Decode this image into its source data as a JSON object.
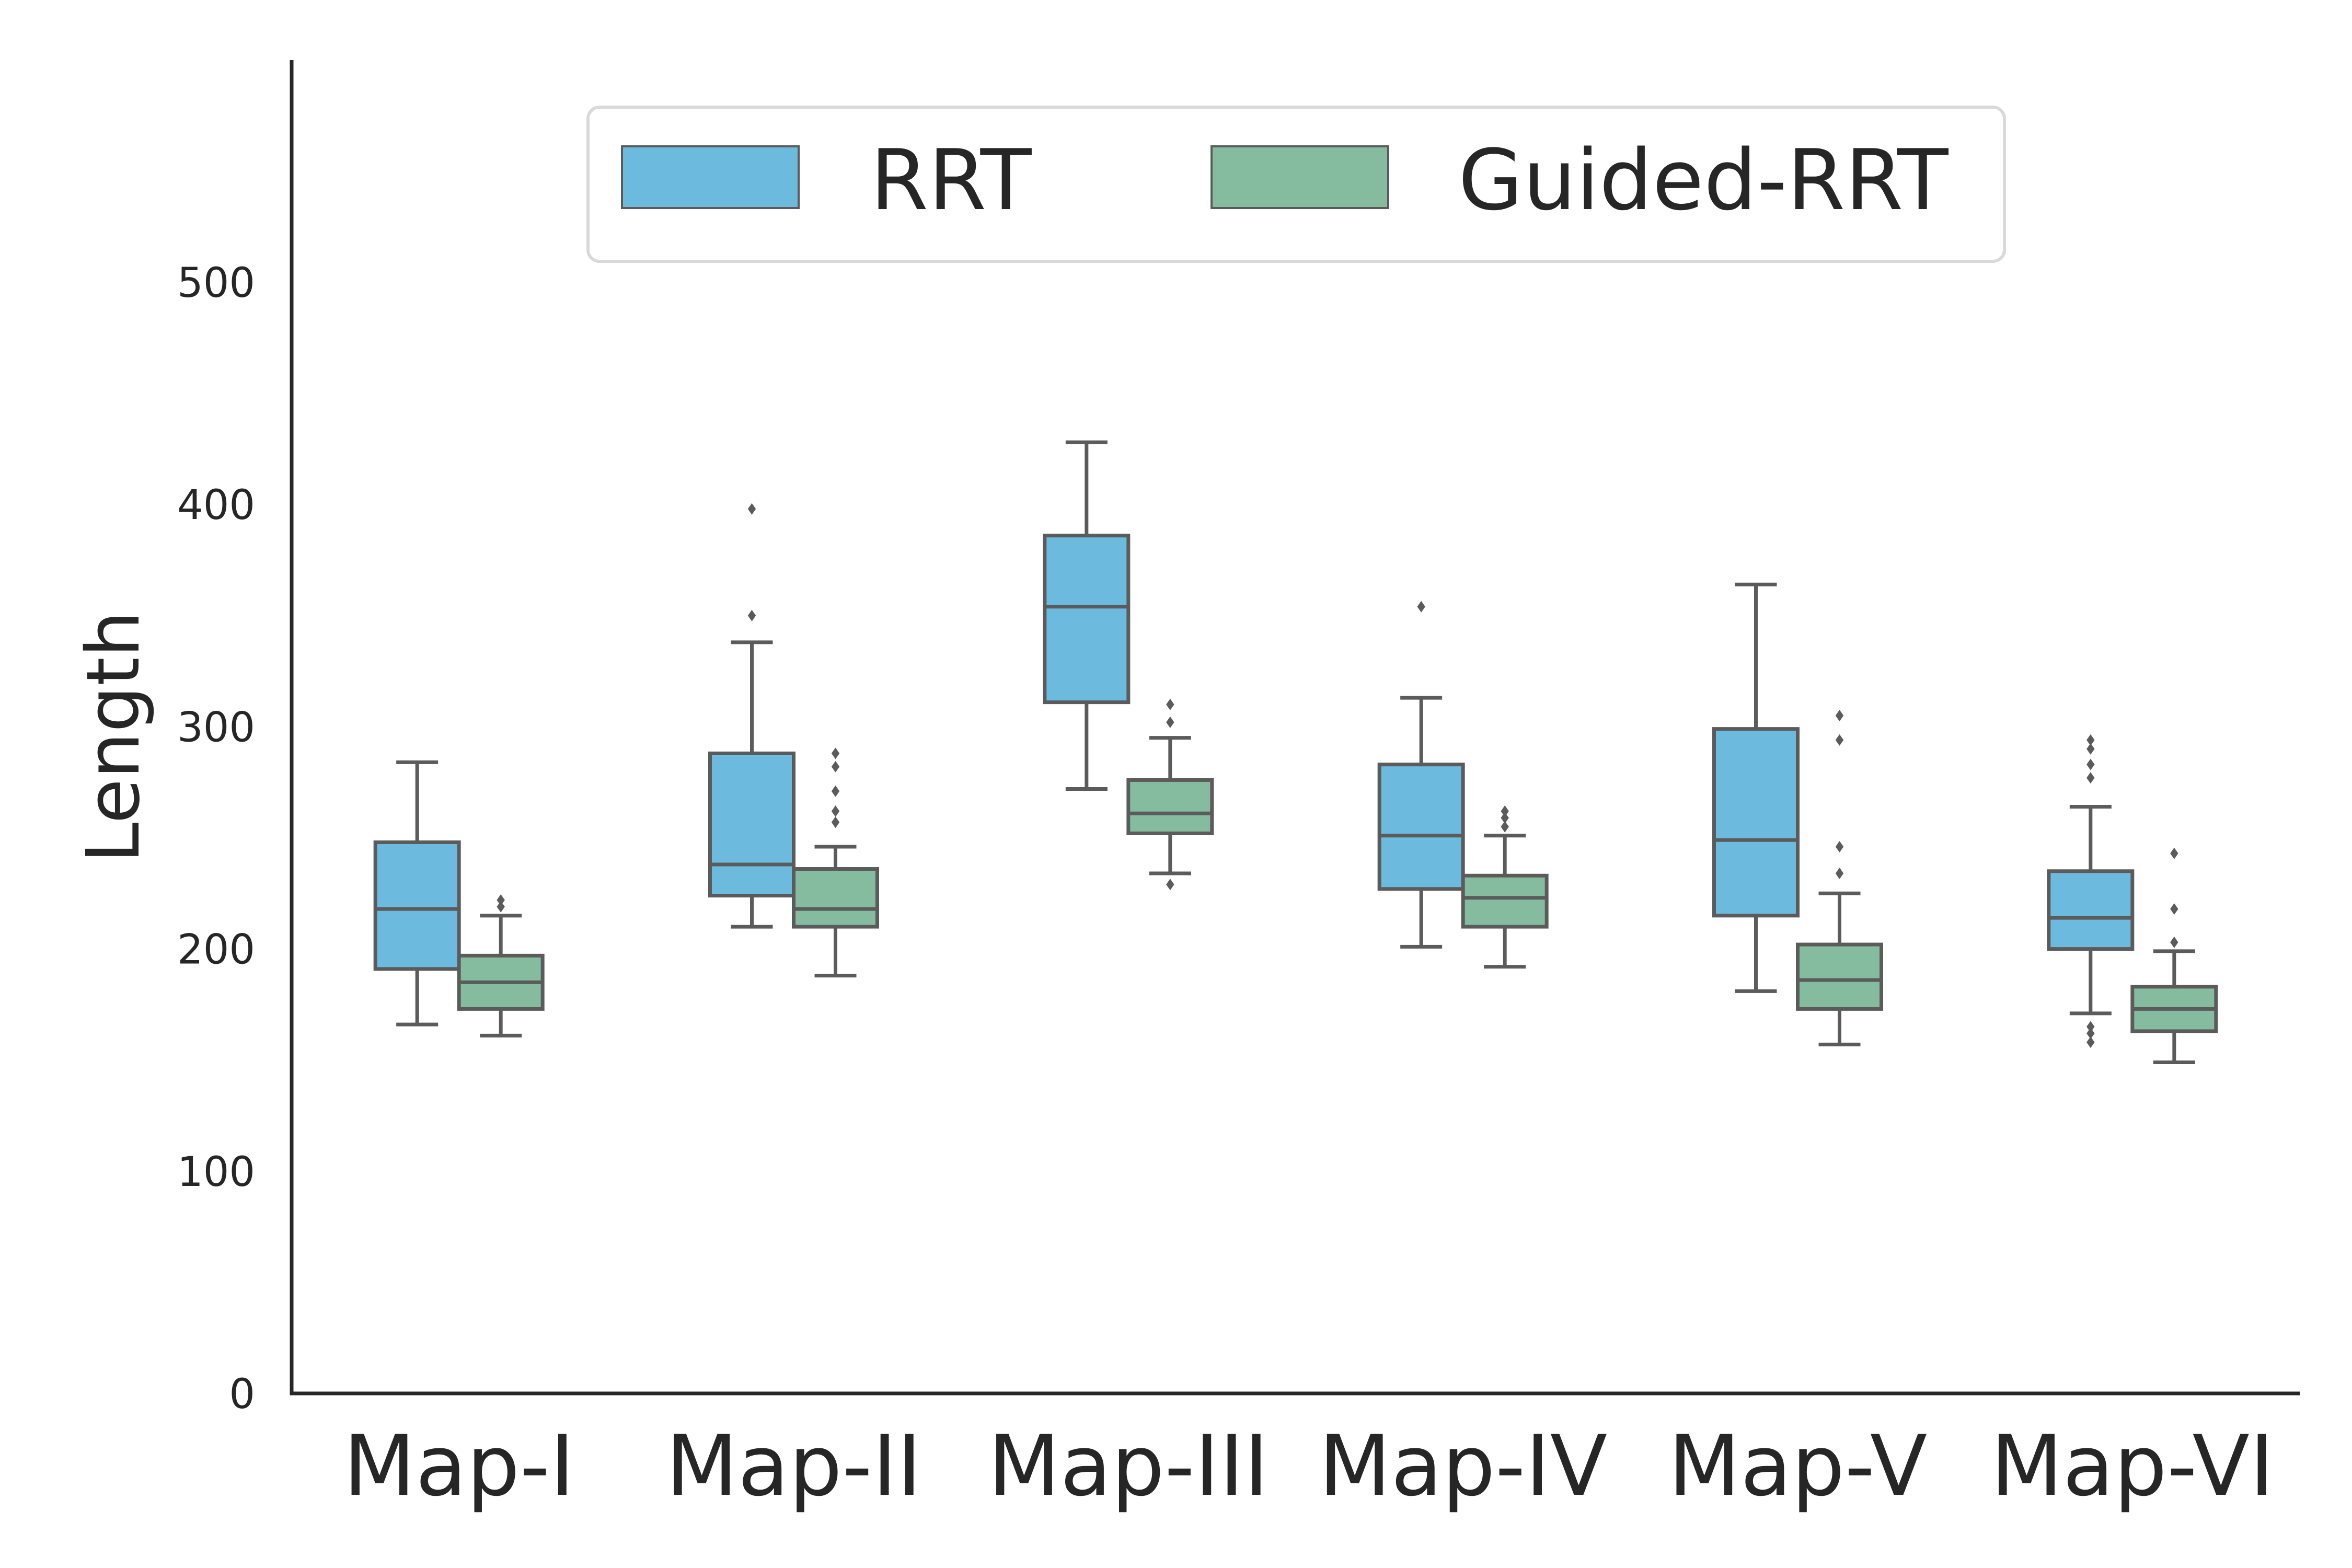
{
  "chart_data": {
    "type": "box",
    "title": "",
    "xlabel": "",
    "ylabel": "Length",
    "ylim": [
      0,
      600
    ],
    "yticks": [
      0,
      100,
      200,
      300,
      400,
      500
    ],
    "grid": false,
    "legend_position": "top-center",
    "categories": [
      "Map-I",
      "Map-II",
      "Map-III",
      "Map-IV",
      "Map-V",
      "Map-VI"
    ],
    "series": [
      {
        "name": "RRT",
        "color": "#6cbbdf",
        "boxes": [
          {
            "whislo": 166,
            "q1": 191,
            "med": 218,
            "q3": 248,
            "whishi": 284,
            "fliers": []
          },
          {
            "whislo": 210,
            "q1": 224,
            "med": 238,
            "q3": 288,
            "whishi": 338,
            "fliers": [
              350,
              398
            ]
          },
          {
            "whislo": 272,
            "q1": 311,
            "med": 354,
            "q3": 386,
            "whishi": 428,
            "fliers": []
          },
          {
            "whislo": 201,
            "q1": 227,
            "med": 251,
            "q3": 283,
            "whishi": 313,
            "fliers": [
              354
            ]
          },
          {
            "whislo": 181,
            "q1": 215,
            "med": 249,
            "q3": 299,
            "whishi": 364,
            "fliers": []
          },
          {
            "whislo": 171,
            "q1": 200,
            "med": 214,
            "q3": 235,
            "whishi": 264,
            "fliers": [
              158,
              162,
              165,
              277,
              283,
              290,
              294
            ]
          }
        ]
      },
      {
        "name": "Guided-RRT",
        "color": "#85bc9f",
        "boxes": [
          {
            "whislo": 161,
            "q1": 173,
            "med": 185,
            "q3": 197,
            "whishi": 215,
            "fliers": [
              219,
              222
            ]
          },
          {
            "whislo": 188,
            "q1": 210,
            "med": 218,
            "q3": 236,
            "whishi": 246,
            "fliers": [
              257,
              262,
              271,
              282,
              288
            ]
          },
          {
            "whislo": 234,
            "q1": 252,
            "med": 261,
            "q3": 276,
            "whishi": 295,
            "fliers": [
              229,
              302,
              310
            ]
          },
          {
            "whislo": 192,
            "q1": 210,
            "med": 223,
            "q3": 233,
            "whishi": 251,
            "fliers": [
              255,
              259,
              262
            ]
          },
          {
            "whislo": 157,
            "q1": 173,
            "med": 186,
            "q3": 202,
            "whishi": 225,
            "fliers": [
              234,
              246,
              294,
              305
            ]
          },
          {
            "whislo": 149,
            "q1": 163,
            "med": 173,
            "q3": 183,
            "whishi": 199,
            "fliers": [
              203,
              218,
              243
            ]
          }
        ]
      }
    ],
    "style": {
      "line_color": "#5b5b5b",
      "axis_color": "#262626",
      "legend_border": "#d9d9d9"
    }
  }
}
